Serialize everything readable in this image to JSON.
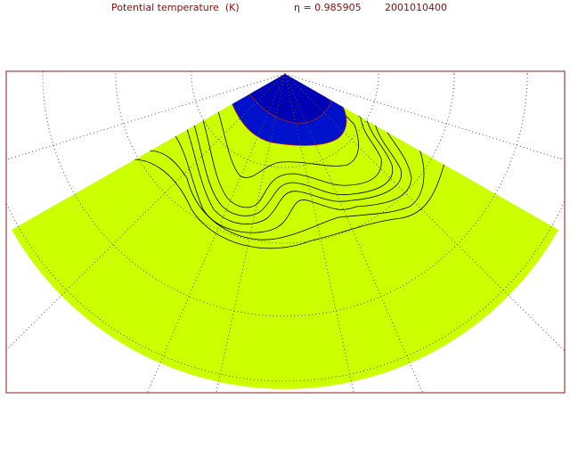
{
  "header": {
    "title": "Potential temperature  (K)",
    "level": "η = 0.985905",
    "date": "2001010400"
  }
}
